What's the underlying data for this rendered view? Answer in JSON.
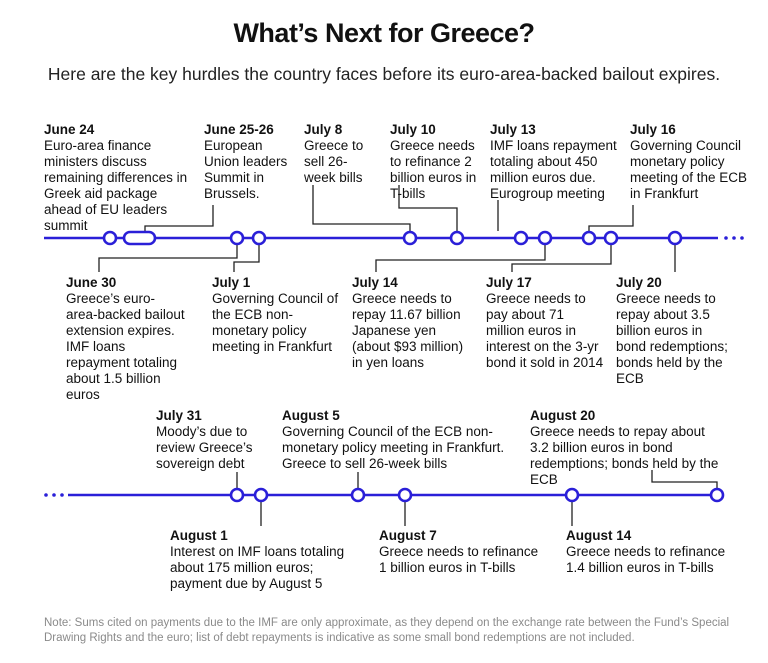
{
  "header": {
    "title": "What’s Next for Greece?",
    "subtitle": "Here are the key hurdles the country faces before its euro-area-backed bailout expires."
  },
  "colors": {
    "timeline": "#2a1fd8",
    "connector": "#222222",
    "text": "#111111",
    "note": "#8a8a8a"
  },
  "events": {
    "e1": {
      "date": "June 24",
      "text": "Euro-area finance ministers discuss remaining differences in Greek aid package ahead of EU leaders summit"
    },
    "e2": {
      "date": "June 25-26",
      "text": "European Union leaders Summit in Brussels."
    },
    "e3": {
      "date": "July 8",
      "text": "Greece to sell 26-week bills"
    },
    "e4": {
      "date": "July 10",
      "text": "Greece needs to refinance 2 billion euros in T-bills"
    },
    "e5": {
      "date": "July 13",
      "text": "IMF loans repayment totaling about 450 million euros due. Eurogroup meeting"
    },
    "e6": {
      "date": "July 16",
      "text": "Governing Council monetary policy meeting of the ECB in Frankfurt"
    },
    "e7": {
      "date": "June 30",
      "text": "Greece’s euro-area-backed bailout extension expires. IMF loans repayment totaling about 1.5 billion euros"
    },
    "e8": {
      "date": "July 1",
      "text": "Governing Council of the ECB non-monetary policy meeting in Frankfurt"
    },
    "e9": {
      "date": "July 14",
      "text": "Greece needs to repay 11.67 billion Japanese yen (about $93 million) in yen loans"
    },
    "e10": {
      "date": "July 17",
      "text": "Greece needs to pay about 71 million euros in interest on the 3-yr bond it sold in 2014"
    },
    "e11": {
      "date": "July 20",
      "text": "Greece needs to repay about 3.5 billion euros in bond redemptions; bonds held by the ECB"
    },
    "e12": {
      "date": "July 31",
      "text": "Moody’s due to review Greece’s sovereign debt"
    },
    "e13": {
      "date": "August 5",
      "text": "Governing Council of the ECB non-monetary policy meeting in Frankfurt. Greece to sell 26-week bills"
    },
    "e14": {
      "date": "August 20",
      "text": "Greece needs to repay about 3.2 billion euros in bond redemptions; bonds held by the ECB"
    },
    "e15": {
      "date": "August 1",
      "text": "Interest on IMF loans totaling about 175 million euros; payment due by August 5"
    },
    "e16": {
      "date": "August 7",
      "text": "Greece needs to refinance 1 billion euros in T-bills"
    },
    "e17": {
      "date": "August 14",
      "text": "Greece needs to refinance 1.4 billion euros in T-bills"
    }
  },
  "note": "Note: Sums cited on payments due to the IMF are only approximate, as they depend on the exchange rate between the Fund’s Special Drawing Rights and the euro; list of debt repayments is indicative as some small bond redemptions are not included."
}
